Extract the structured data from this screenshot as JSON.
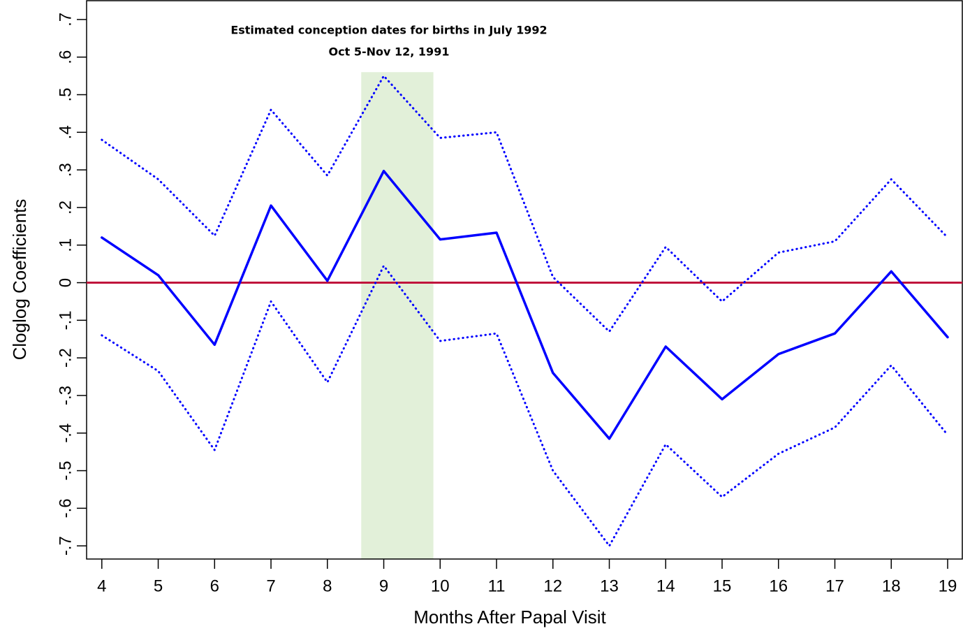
{
  "chart_data": {
    "type": "line",
    "xlabel": "Months After Papal Visit",
    "ylabel": "Cloglog Coefficients",
    "x": [
      4,
      5,
      6,
      7,
      8,
      9,
      10,
      11,
      12,
      13,
      14,
      15,
      16,
      17,
      18,
      19
    ],
    "series": [
      {
        "color": "#0000ff",
        "style": "solid",
        "values": [
          0.12,
          0.02,
          -0.165,
          0.205,
          0.005,
          0.297,
          0.115,
          0.133,
          -0.24,
          -0.415,
          -0.17,
          -0.31,
          -0.19,
          -0.135,
          0.03,
          -0.145
        ]
      },
      {
        "color": "#0000ff",
        "style": "dotted",
        "values": [
          0.38,
          0.275,
          0.125,
          0.46,
          0.285,
          0.55,
          0.385,
          0.4,
          0.015,
          -0.13,
          0.095,
          -0.05,
          0.08,
          0.11,
          0.275,
          0.12
        ]
      },
      {
        "color": "#0000ff",
        "style": "dotted",
        "values": [
          -0.14,
          -0.235,
          -0.445,
          -0.05,
          -0.265,
          0.045,
          -0.155,
          -0.135,
          -0.5,
          -0.7,
          -0.43,
          -0.57,
          -0.455,
          -0.385,
          -0.22,
          -0.405
        ]
      }
    ],
    "reference_line": {
      "y": 0,
      "color": "#c0143c"
    },
    "highlight": {
      "xrange": [
        8.6,
        9.88
      ],
      "top": 0.56,
      "color": "#e2f0d9",
      "annotation": [
        "Estimated conception dates for births in July 1992",
        "Oct 5-Nov 12, 1991"
      ]
    },
    "xlim": [
      3.73,
      19.26
    ],
    "ylim": [
      -0.735,
      0.75
    ],
    "xticks": [
      4,
      5,
      6,
      7,
      8,
      9,
      10,
      11,
      12,
      13,
      14,
      15,
      16,
      17,
      18,
      19
    ],
    "yticks": [
      {
        "value": -0.7,
        "label": "-.7"
      },
      {
        "value": -0.6,
        "label": "-.6"
      },
      {
        "value": -0.5,
        "label": "-.5"
      },
      {
        "value": -0.4,
        "label": "-.4"
      },
      {
        "value": -0.3,
        "label": "-.3"
      },
      {
        "value": -0.2,
        "label": "-.2"
      },
      {
        "value": -0.1,
        "label": "-.1"
      },
      0,
      {
        "value": 0.1,
        "label": ".1"
      },
      {
        "value": 0.2,
        "label": ".2"
      },
      {
        "value": 0.3,
        "label": ".3"
      },
      {
        "value": 0.4,
        "label": ".4"
      },
      {
        "value": 0.5,
        "label": ".5"
      },
      {
        "value": 0.6,
        "label": ".6"
      },
      {
        "value": 0.7,
        "label": ".7"
      }
    ]
  }
}
